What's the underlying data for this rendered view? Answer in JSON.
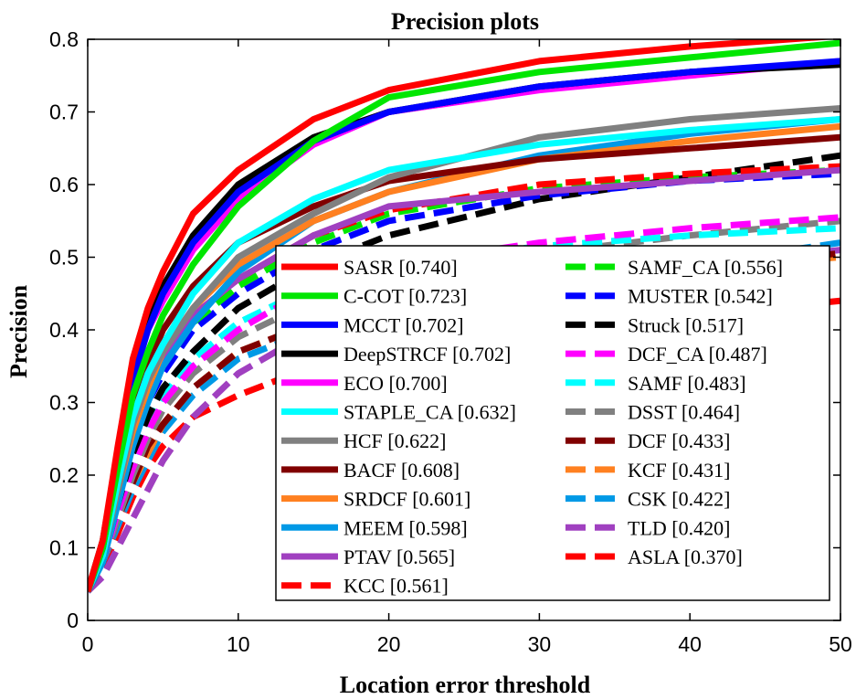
{
  "chart_data": {
    "type": "line",
    "title": "Precision plots",
    "xlabel": "Location error threshold",
    "ylabel": "Precision",
    "xlim": [
      0,
      50
    ],
    "ylim": [
      0,
      0.8
    ],
    "xticks": [
      0,
      10,
      20,
      30,
      40,
      50
    ],
    "yticks": [
      0,
      0.1,
      0.2,
      0.3,
      0.4,
      0.5,
      0.6,
      0.7,
      0.8
    ],
    "ytick_labels": [
      "0",
      "0.1",
      "0.2",
      "0.3",
      "0.4",
      "0.5",
      "0.6",
      "0.7",
      "0.8"
    ],
    "xtick_labels": [
      "0",
      "10",
      "20",
      "30",
      "40",
      "50"
    ],
    "grid": false,
    "legend_position": "inside lower-right, two columns",
    "x": [
      0,
      1,
      2,
      3,
      4,
      5,
      7,
      10,
      15,
      20,
      30,
      40,
      50
    ],
    "series": [
      {
        "name": "SASR [0.740]",
        "color": "#ff0000",
        "dash": false,
        "values": [
          0.04,
          0.11,
          0.24,
          0.36,
          0.43,
          0.48,
          0.56,
          0.62,
          0.69,
          0.73,
          0.77,
          0.79,
          0.805
        ]
      },
      {
        "name": "C-COT [0.723]",
        "color": "#00e600",
        "dash": false,
        "values": [
          0.04,
          0.1,
          0.21,
          0.31,
          0.37,
          0.42,
          0.49,
          0.57,
          0.66,
          0.72,
          0.755,
          0.775,
          0.795
        ]
      },
      {
        "name": "MCCT [0.702]",
        "color": "#0000ff",
        "dash": false,
        "values": [
          0.04,
          0.1,
          0.22,
          0.33,
          0.4,
          0.45,
          0.52,
          0.59,
          0.66,
          0.7,
          0.735,
          0.755,
          0.77
        ]
      },
      {
        "name": "DeepSTRCF [0.702]",
        "color": "#000000",
        "dash": false,
        "values": [
          0.04,
          0.11,
          0.23,
          0.34,
          0.41,
          0.46,
          0.53,
          0.6,
          0.665,
          0.7,
          0.735,
          0.755,
          0.765
        ]
      },
      {
        "name": "ECO [0.700]",
        "color": "#ff00ff",
        "dash": false,
        "values": [
          0.04,
          0.1,
          0.22,
          0.33,
          0.4,
          0.44,
          0.51,
          0.58,
          0.655,
          0.7,
          0.73,
          0.75,
          0.77
        ]
      },
      {
        "name": "STAPLE_CA [0.632]",
        "color": "#00ffff",
        "dash": false,
        "values": [
          0.04,
          0.09,
          0.19,
          0.28,
          0.34,
          0.38,
          0.45,
          0.52,
          0.58,
          0.62,
          0.655,
          0.675,
          0.69
        ]
      },
      {
        "name": "HCF [0.622]",
        "color": "#808080",
        "dash": false,
        "values": [
          0.04,
          0.09,
          0.18,
          0.27,
          0.33,
          0.37,
          0.43,
          0.5,
          0.56,
          0.61,
          0.665,
          0.69,
          0.705
        ]
      },
      {
        "name": "BACF [0.608]",
        "color": "#800000",
        "dash": false,
        "values": [
          0.04,
          0.1,
          0.2,
          0.29,
          0.35,
          0.4,
          0.46,
          0.52,
          0.57,
          0.605,
          0.635,
          0.65,
          0.665
        ]
      },
      {
        "name": "SRDCF [0.601]",
        "color": "#ff8020",
        "dash": false,
        "values": [
          0.04,
          0.09,
          0.18,
          0.26,
          0.32,
          0.37,
          0.43,
          0.49,
          0.55,
          0.59,
          0.635,
          0.66,
          0.68
        ]
      },
      {
        "name": "MEEM [0.598]",
        "color": "#0099e6",
        "dash": false,
        "values": [
          0.04,
          0.08,
          0.16,
          0.24,
          0.3,
          0.35,
          0.41,
          0.48,
          0.55,
          0.59,
          0.64,
          0.67,
          0.69
        ]
      },
      {
        "name": "PTAV [0.565]",
        "color": "#a040c0",
        "dash": false,
        "values": [
          0.04,
          0.09,
          0.18,
          0.27,
          0.32,
          0.36,
          0.42,
          0.47,
          0.53,
          0.57,
          0.59,
          0.605,
          0.62
        ]
      },
      {
        "name": "KCC [0.561]",
        "color": "#ff0000",
        "dash": true,
        "values": [
          0.04,
          0.09,
          0.18,
          0.26,
          0.32,
          0.36,
          0.42,
          0.47,
          0.53,
          0.565,
          0.6,
          0.615,
          0.625
        ]
      },
      {
        "name": "SAMF_CA [0.556]",
        "color": "#00e600",
        "dash": true,
        "values": [
          0.04,
          0.09,
          0.17,
          0.25,
          0.31,
          0.35,
          0.41,
          0.46,
          0.52,
          0.56,
          0.595,
          0.61,
          0.62
        ]
      },
      {
        "name": "MUSTER [0.542]",
        "color": "#0000ff",
        "dash": true,
        "values": [
          0.04,
          0.09,
          0.17,
          0.25,
          0.3,
          0.34,
          0.4,
          0.45,
          0.51,
          0.55,
          0.585,
          0.605,
          0.615
        ]
      },
      {
        "name": "Struck [0.517]",
        "color": "#000000",
        "dash": true,
        "values": [
          0.04,
          0.08,
          0.16,
          0.23,
          0.28,
          0.32,
          0.37,
          0.43,
          0.49,
          0.53,
          0.58,
          0.61,
          0.64
        ]
      },
      {
        "name": "DCF_CA [0.487]",
        "color": "#ff00ff",
        "dash": true,
        "values": [
          0.04,
          0.08,
          0.15,
          0.21,
          0.26,
          0.3,
          0.35,
          0.4,
          0.46,
          0.49,
          0.52,
          0.54,
          0.555
        ]
      },
      {
        "name": "SAMF [0.483]",
        "color": "#00ffff",
        "dash": true,
        "values": [
          0.04,
          0.08,
          0.15,
          0.22,
          0.27,
          0.31,
          0.36,
          0.41,
          0.46,
          0.49,
          0.515,
          0.53,
          0.54
        ]
      },
      {
        "name": "DSST [0.464]",
        "color": "#808080",
        "dash": true,
        "values": [
          0.04,
          0.08,
          0.14,
          0.2,
          0.25,
          0.29,
          0.34,
          0.39,
          0.44,
          0.47,
          0.505,
          0.53,
          0.55
        ]
      },
      {
        "name": "DCF [0.433]",
        "color": "#800000",
        "dash": true,
        "values": [
          0.04,
          0.08,
          0.14,
          0.19,
          0.24,
          0.27,
          0.32,
          0.37,
          0.41,
          0.44,
          0.47,
          0.49,
          0.505
        ]
      },
      {
        "name": "KCF [0.431]",
        "color": "#ff8020",
        "dash": true,
        "values": [
          0.04,
          0.08,
          0.14,
          0.19,
          0.23,
          0.27,
          0.32,
          0.37,
          0.41,
          0.44,
          0.47,
          0.485,
          0.5
        ]
      },
      {
        "name": "CSK [0.422]",
        "color": "#0099e6",
        "dash": true,
        "values": [
          0.04,
          0.08,
          0.13,
          0.18,
          0.22,
          0.26,
          0.31,
          0.36,
          0.4,
          0.43,
          0.465,
          0.49,
          0.52
        ]
      },
      {
        "name": "TLD [0.420]",
        "color": "#a040c0",
        "dash": true,
        "values": [
          0.04,
          0.06,
          0.1,
          0.14,
          0.18,
          0.22,
          0.28,
          0.34,
          0.4,
          0.43,
          0.465,
          0.49,
          0.51
        ]
      },
      {
        "name": "ASLA [0.370]",
        "color": "#ff0000",
        "dash": true,
        "values": [
          0.04,
          0.07,
          0.12,
          0.17,
          0.21,
          0.24,
          0.28,
          0.31,
          0.35,
          0.37,
          0.4,
          0.42,
          0.44
        ]
      }
    ]
  }
}
